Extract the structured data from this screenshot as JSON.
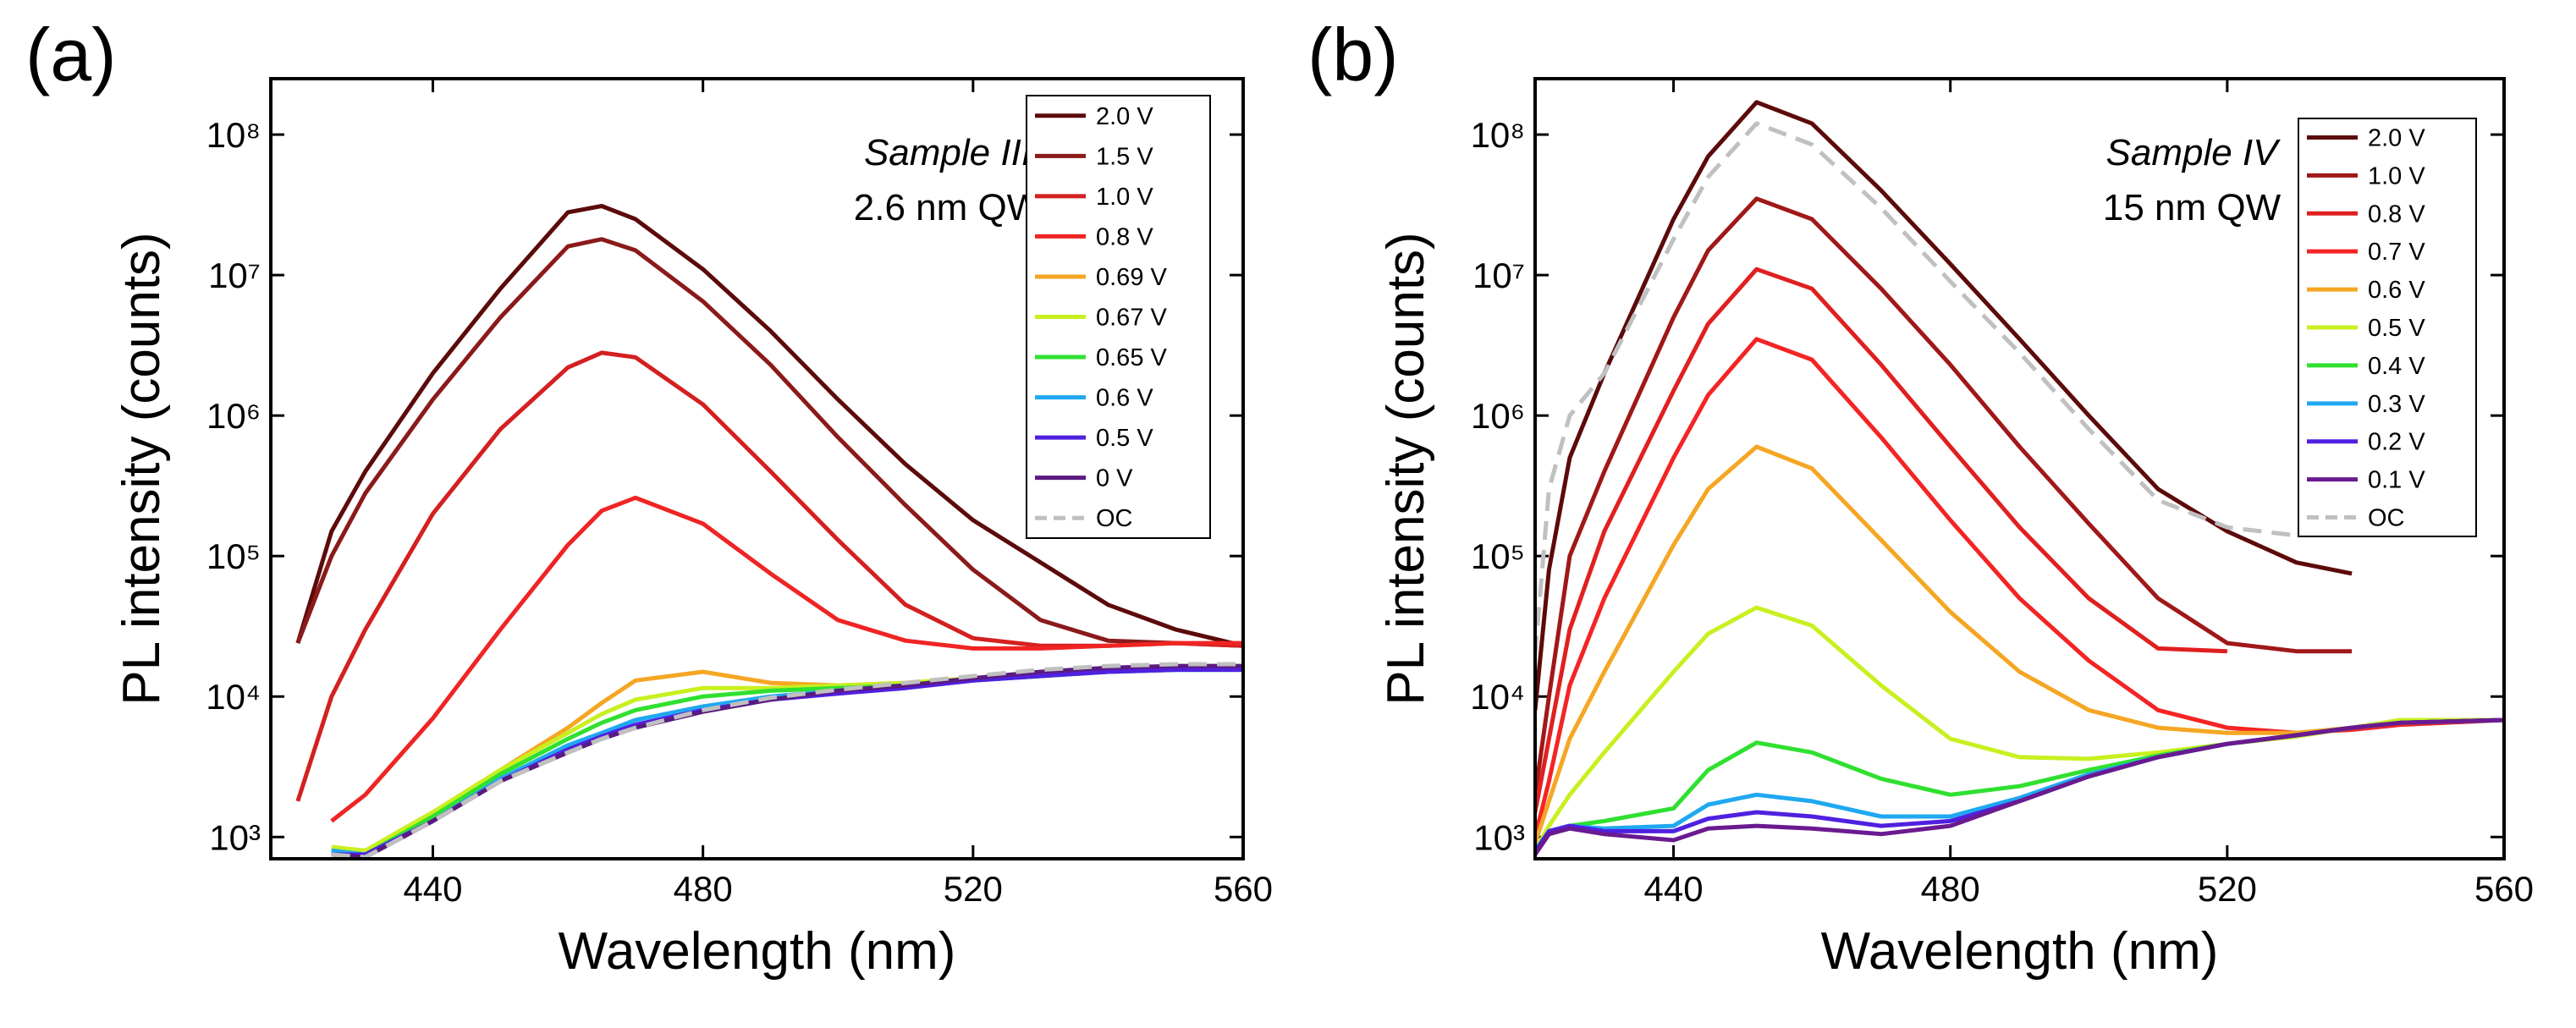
{
  "chart_data": [
    {
      "type": "line",
      "panel_label": "(a)",
      "annotations": [
        "Sample III",
        "2.6 nm QW"
      ],
      "x_label": "Wavelength (nm)",
      "y_label": "PL intensity (counts)",
      "x": [
        420,
        425,
        430,
        440,
        450,
        460,
        465,
        470,
        480,
        490,
        500,
        510,
        520,
        530,
        540,
        550,
        560
      ],
      "xlim": [
        416,
        560
      ],
      "xticks": [
        440,
        480,
        520,
        560
      ],
      "ylim": [
        700,
        250000000
      ],
      "log_scale": "y",
      "legend": "upper right",
      "yticks": [
        {
          "value": 1000,
          "label": "10³"
        },
        {
          "value": 10000,
          "label": "10⁴"
        },
        {
          "value": 100000,
          "label": "10⁵"
        },
        {
          "value": 1000000,
          "label": "10⁶"
        },
        {
          "value": 10000000,
          "label": "10⁷"
        },
        {
          "value": 100000000,
          "label": "10⁸"
        }
      ],
      "series": [
        {
          "name": "2.0 V",
          "color": "#5c0a0a",
          "values": [
            24000,
            150000,
            400000,
            2000000,
            8000000,
            28000000,
            31000000,
            25000000,
            11000000,
            4000000,
            1300000,
            450000,
            180000,
            90000,
            45000,
            30000,
            23000
          ]
        },
        {
          "name": "1.5 V",
          "color": "#8b1a1a",
          "values": [
            24000,
            100000,
            280000,
            1300000,
            5000000,
            16000000,
            18000000,
            15000000,
            6500000,
            2300000,
            700000,
            230000,
            80000,
            35000,
            25000,
            24000,
            23000
          ]
        },
        {
          "name": "1.0 V",
          "color": "#d42020",
          "values": [
            1800,
            10000,
            30000,
            200000,
            800000,
            2200000,
            2800000,
            2600000,
            1200000,
            400000,
            130000,
            45000,
            26000,
            23000,
            23000,
            24000,
            23000
          ]
        },
        {
          "name": "0.8 V",
          "color": "#f02424",
          "values": [
            null,
            1300,
            2000,
            7000,
            30000,
            120000,
            210000,
            260000,
            170000,
            75000,
            35000,
            25000,
            22000,
            22000,
            23000,
            24000,
            24000
          ]
        },
        {
          "name": "0.69 V",
          "color": "#f5a623",
          "values": [
            null,
            800,
            800,
            1500,
            3000,
            6000,
            9000,
            13000,
            15000,
            12500,
            12000,
            12500,
            13500,
            14500,
            15500,
            16000,
            16000
          ]
        },
        {
          "name": "0.67 V",
          "color": "#c8f020",
          "values": [
            null,
            850,
            800,
            1500,
            3000,
            5500,
            7500,
            9500,
            11500,
            11500,
            12000,
            12500,
            13500,
            14500,
            15500,
            16000,
            16000
          ]
        },
        {
          "name": "0.65 V",
          "color": "#30e030",
          "values": [
            null,
            800,
            750,
            1400,
            2800,
            5000,
            6500,
            8000,
            10000,
            11000,
            11500,
            12000,
            13000,
            14000,
            15000,
            15500,
            15500
          ]
        },
        {
          "name": "0.6 V",
          "color": "#20a8f0",
          "values": [
            null,
            800,
            750,
            1300,
            2600,
            4500,
            5500,
            6800,
            8500,
            10000,
            11000,
            12000,
            13000,
            14000,
            15000,
            15500,
            15500
          ]
        },
        {
          "name": "0.5 V",
          "color": "#5020e0",
          "values": [
            null,
            750,
            750,
            1300,
            2500,
            4200,
            5200,
            6300,
            8000,
            9500,
            10500,
            11500,
            13000,
            14000,
            15000,
            15500,
            15500
          ]
        },
        {
          "name": "0 V",
          "color": "#5a1a80",
          "values": [
            null,
            750,
            720,
            1300,
            2500,
            4000,
            5000,
            6000,
            7800,
            9500,
            11000,
            12000,
            13500,
            15000,
            16000,
            16500,
            16500
          ]
        },
        {
          "name": "OC",
          "color": "#c0c0c0",
          "linestyle": "dashed",
          "values": [
            null,
            750,
            720,
            1300,
            2500,
            4000,
            5000,
            6000,
            8000,
            9800,
            11200,
            12500,
            14000,
            15500,
            16500,
            17000,
            17000
          ]
        }
      ]
    },
    {
      "type": "line",
      "panel_label": "(b)",
      "annotations": [
        "Sample IV",
        "15 nm QW"
      ],
      "x_label": "Wavelength (nm)",
      "y_label": "PL intensity (counts)",
      "x": [
        420,
        422,
        425,
        430,
        440,
        445,
        452,
        460,
        470,
        480,
        490,
        500,
        510,
        520,
        530,
        538,
        545,
        560
      ],
      "xlim": [
        420,
        560
      ],
      "xticks": [
        440,
        480,
        520,
        560
      ],
      "ylim": [
        700,
        250000000
      ],
      "log_scale": "y",
      "legend": "upper right",
      "yticks": [
        {
          "value": 1000,
          "label": "10³"
        },
        {
          "value": 10000,
          "label": "10⁴"
        },
        {
          "value": 100000,
          "label": "10⁵"
        },
        {
          "value": 1000000,
          "label": "10⁶"
        },
        {
          "value": 10000000,
          "label": "10⁷"
        },
        {
          "value": 100000000,
          "label": "10⁸"
        }
      ],
      "series": [
        {
          "name": "2.0 V",
          "color": "#5c0a0a",
          "values": [
            8000,
            80000,
            500000,
            2000000,
            25000000,
            70000000,
            170000000,
            120000000,
            40000000,
            12000000,
            3500000,
            1000000,
            300000,
            150000,
            90000,
            75000,
            null,
            null
          ]
        },
        {
          "name": "1.0 V",
          "color": "#a01818",
          "values": [
            2000,
            10000,
            100000,
            400000,
            5000000,
            15000000,
            35000000,
            25000000,
            8000000,
            2300000,
            600000,
            170000,
            50000,
            24000,
            21000,
            21000,
            null,
            null
          ]
        },
        {
          "name": "0.8 V",
          "color": "#e02020",
          "values": [
            1500,
            5000,
            30000,
            150000,
            1500000,
            4500000,
            11000000,
            8000000,
            2300000,
            600000,
            160000,
            50000,
            22000,
            21000,
            null,
            null,
            null,
            null
          ]
        },
        {
          "name": "0.7 V",
          "color": "#f52424",
          "values": [
            1000,
            2500,
            12000,
            50000,
            500000,
            1400000,
            3500000,
            2500000,
            700000,
            180000,
            50000,
            18000,
            8000,
            6000,
            5500,
            5800,
            6300,
            6800
          ]
        },
        {
          "name": "0.6 V",
          "color": "#f5a623",
          "values": [
            900,
            1800,
            5000,
            15000,
            120000,
            300000,
            600000,
            420000,
            130000,
            40000,
            15000,
            8000,
            6000,
            5500,
            5500,
            6000,
            6500,
            6800
          ]
        },
        {
          "name": "0.5 V",
          "color": "#c8f020",
          "values": [
            800,
            1200,
            2000,
            4000,
            15000,
            28000,
            43000,
            32000,
            12000,
            5000,
            3700,
            3600,
            4000,
            4600,
            5200,
            6000,
            6800,
            6800
          ]
        },
        {
          "name": "0.4 V",
          "color": "#30e030",
          "values": [
            800,
            1100,
            1200,
            1300,
            1600,
            3000,
            4700,
            4000,
            2600,
            2000,
            2300,
            3000,
            3800,
            4600,
            5300,
            6000,
            6500,
            6800
          ]
        },
        {
          "name": "0.3 V",
          "color": "#20a8f0",
          "values": [
            800,
            1100,
            1200,
            1150,
            1200,
            1700,
            2000,
            1800,
            1400,
            1400,
            1900,
            2800,
            3700,
            4600,
            5300,
            6000,
            6500,
            6800
          ]
        },
        {
          "name": "0.2 V",
          "color": "#5020e0",
          "values": [
            780,
            1100,
            1200,
            1100,
            1100,
            1350,
            1500,
            1400,
            1200,
            1300,
            1800,
            2700,
            3700,
            4600,
            5300,
            6000,
            6500,
            6800
          ]
        },
        {
          "name": "0.1 V",
          "color": "#6a1a90",
          "values": [
            750,
            1050,
            1150,
            1050,
            950,
            1150,
            1200,
            1150,
            1050,
            1200,
            1800,
            2700,
            3700,
            4600,
            5300,
            6000,
            6500,
            6800
          ]
        },
        {
          "name": "OC",
          "color": "#c0c0c0",
          "linestyle": "dashed",
          "values": [
            20000,
            300000,
            1000000,
            2000000,
            18000000,
            50000000,
            120000000,
            85000000,
            30000000,
            9000000,
            2800000,
            800000,
            250000,
            160000,
            140000,
            null,
            null,
            null
          ]
        }
      ]
    }
  ]
}
